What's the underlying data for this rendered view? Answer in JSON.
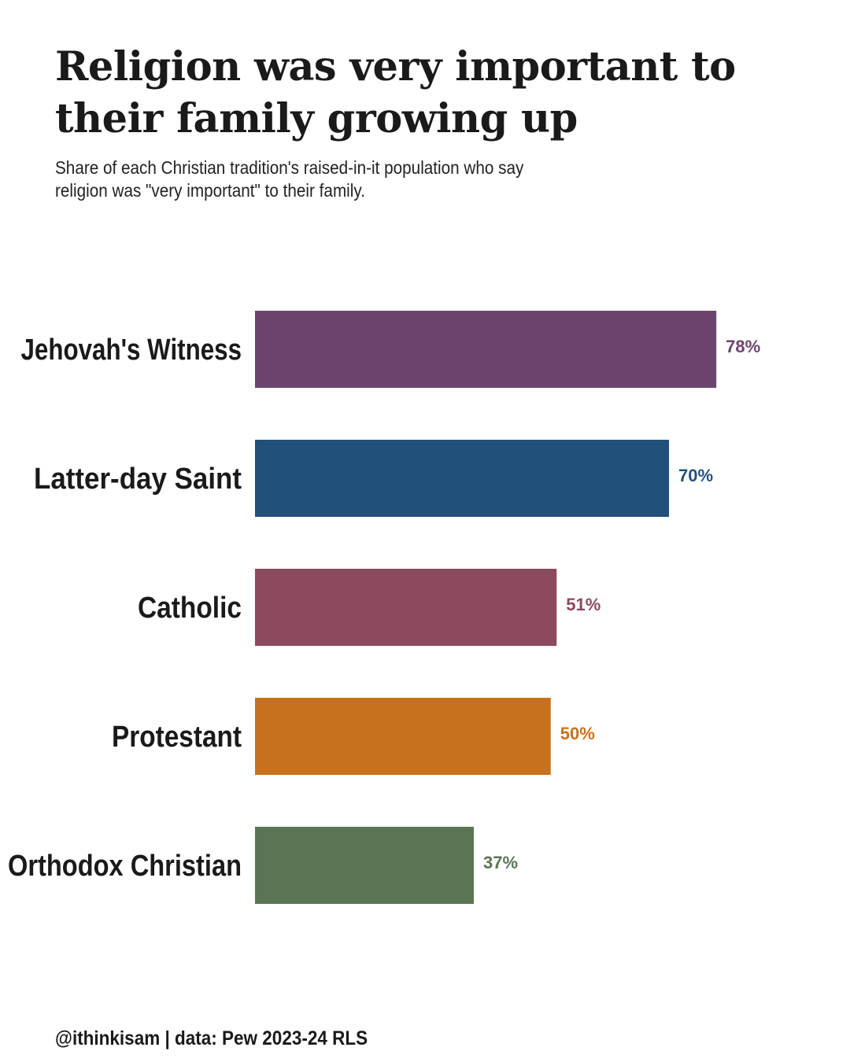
{
  "chart_data": {
    "type": "bar",
    "orientation": "horizontal",
    "title": "Religion was very important to their family growing up",
    "subtitle": "Share of each Christian tradition's raised-in-it population who say religion was \"very important\" to their family.",
    "categories": [
      "Jehovah's Witness",
      "Latter-day Saint",
      "Catholic",
      "Protestant",
      "Orthodox Christian"
    ],
    "values": [
      78,
      70,
      51,
      50,
      37
    ],
    "value_labels": [
      "78%",
      "70%",
      "51%",
      "50%",
      "37%"
    ],
    "colors": [
      "#6b446e",
      "#21517b",
      "#8b4a5e",
      "#c8711c",
      "#5b7554"
    ],
    "xlim": [
      0,
      100
    ],
    "grid": false,
    "legend": "none"
  },
  "caption": "@ithinkisam | data: Pew 2023-24 RLS"
}
